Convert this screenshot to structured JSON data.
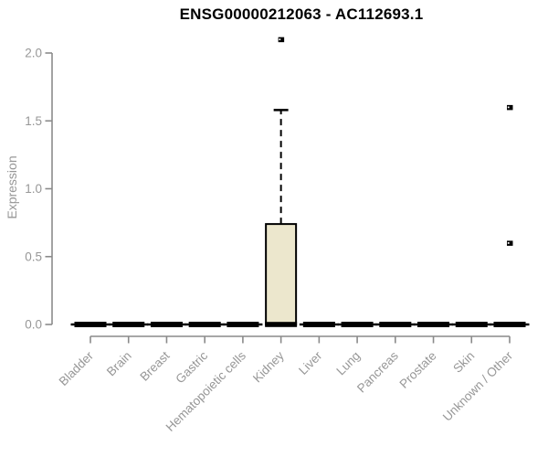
{
  "chart_data": {
    "type": "boxplot",
    "title": "ENSG00000212063 - AC112693.1",
    "ylabel": "Expression",
    "xlabel": "",
    "ylim": [
      0,
      2
    ],
    "yticks": [
      "0.0",
      "0.5",
      "1.0",
      "1.5",
      "2.0"
    ],
    "grid": false,
    "legend": false,
    "categories": [
      "Bladder",
      "Brain",
      "Breast",
      "Gastric",
      "Hematopoietic cells",
      "Kidney",
      "Liver",
      "Lung",
      "Pancreas",
      "Prostate",
      "Skin",
      "Unknown / Other"
    ],
    "boxes": [
      {
        "category": "Bladder",
        "whisker_low": 0,
        "q1": 0,
        "median": 0,
        "q3": 0,
        "whisker_high": 0,
        "outliers": []
      },
      {
        "category": "Brain",
        "whisker_low": 0,
        "q1": 0,
        "median": 0,
        "q3": 0,
        "whisker_high": 0,
        "outliers": []
      },
      {
        "category": "Breast",
        "whisker_low": 0,
        "q1": 0,
        "median": 0,
        "q3": 0,
        "whisker_high": 0,
        "outliers": []
      },
      {
        "category": "Gastric",
        "whisker_low": 0,
        "q1": 0,
        "median": 0,
        "q3": 0,
        "whisker_high": 0,
        "outliers": []
      },
      {
        "category": "Hematopoietic cells",
        "whisker_low": 0,
        "q1": 0,
        "median": 0,
        "q3": 0,
        "whisker_high": 0,
        "outliers": []
      },
      {
        "category": "Kidney",
        "whisker_low": 0,
        "q1": 0,
        "median": 0,
        "q3": 0.74,
        "whisker_high": 1.58,
        "outliers": [
          2.1
        ]
      },
      {
        "category": "Liver",
        "whisker_low": 0,
        "q1": 0,
        "median": 0,
        "q3": 0,
        "whisker_high": 0,
        "outliers": []
      },
      {
        "category": "Lung",
        "whisker_low": 0,
        "q1": 0,
        "median": 0,
        "q3": 0,
        "whisker_high": 0,
        "outliers": []
      },
      {
        "category": "Pancreas",
        "whisker_low": 0,
        "q1": 0,
        "median": 0,
        "q3": 0,
        "whisker_high": 0,
        "outliers": []
      },
      {
        "category": "Prostate",
        "whisker_low": 0,
        "q1": 0,
        "median": 0,
        "q3": 0,
        "whisker_high": 0,
        "outliers": []
      },
      {
        "category": "Skin",
        "whisker_low": 0,
        "q1": 0,
        "median": 0,
        "q3": 0,
        "whisker_high": 0,
        "outliers": []
      },
      {
        "category": "Unknown / Other",
        "whisker_low": 0,
        "q1": 0,
        "median": 0,
        "q3": 0,
        "whisker_high": 0,
        "outliers": [
          1.6,
          0.6
        ]
      }
    ],
    "colors": {
      "box_fill": "#ece7cd",
      "box_stroke": "#000000",
      "axis_line": "#8a8a8a",
      "axis_text": "#979797",
      "title_text": "#000000"
    }
  }
}
